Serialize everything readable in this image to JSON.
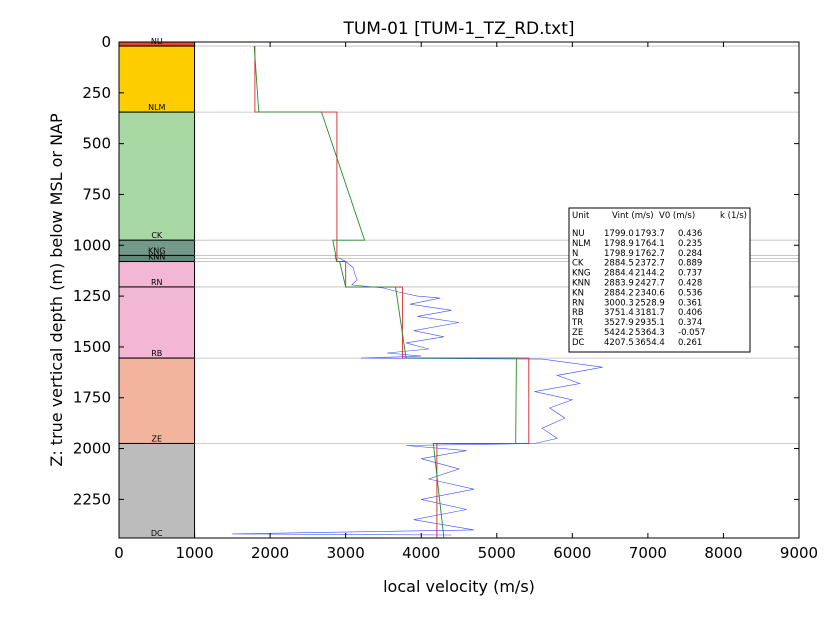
{
  "chart_data": {
    "type": "line",
    "title": "TUM-01 [TUM-1_TZ_RD.txt]",
    "xlabel": "local velocity (m/s)",
    "ylabel": "Z: true vertical depth (m) below MSL or NAP",
    "xlim": [
      0,
      9000
    ],
    "ylim": [
      2440,
      0
    ],
    "x_ticks": [
      "0",
      "1000",
      "2000",
      "3000",
      "4000",
      "5000",
      "6000",
      "7000",
      "8000",
      "9000"
    ],
    "y_ticks": [
      "0",
      "250",
      "500",
      "750",
      "1000",
      "1250",
      "1500",
      "1750",
      "2000",
      "2250"
    ],
    "grid": false,
    "units": [
      {
        "name": "NU",
        "top": 0,
        "bottom": 20,
        "color": "#e8432e",
        "vint": 1799.0,
        "v0": 1793.7,
        "k": 0.436
      },
      {
        "name": "NLM",
        "top": 20,
        "bottom": 345,
        "color": "#fdcd00",
        "vint": 1798.9,
        "v0": 1764.1,
        "k": 0.235
      },
      {
        "name": "CK",
        "top": 345,
        "bottom": 975,
        "color": "#a7d8a3",
        "vint": 2884.5,
        "v0": 2372.7,
        "k": 0.889
      },
      {
        "name": "KNG",
        "top": 975,
        "bottom": 1050,
        "color": "#73998a",
        "vint": 2884.4,
        "v0": 2144.2,
        "k": 0.737
      },
      {
        "name": "KNN",
        "top": 1050,
        "bottom": 1080,
        "color": "#5e8b77",
        "vint": 2883.9,
        "v0": 2427.7,
        "k": 0.428
      },
      {
        "name": "RN",
        "top": 1080,
        "bottom": 1205,
        "color": "#f3b7d6",
        "vint": 3000.3,
        "v0": 2528.9,
        "k": 0.361
      },
      {
        "name": "RB",
        "top": 1205,
        "bottom": 1555,
        "color": "#f3b7d6",
        "vint": 3751.4,
        "v0": 3181.7,
        "k": 0.406
      },
      {
        "name": "ZE",
        "top": 1555,
        "bottom": 1975,
        "color": "#f3b49e",
        "vint": 5424.2,
        "v0": 5364.3,
        "k": -0.057
      },
      {
        "name": "DC",
        "top": 1975,
        "bottom": 2440,
        "color": "#bcbcbc",
        "vint": 4207.5,
        "v0": 3654.4,
        "k": 0.261
      }
    ],
    "legend": {
      "placement": "right",
      "header": [
        "Unit",
        "Vint (m/s)",
        "V0 (m/s)",
        "k (1/s)"
      ],
      "rows": [
        [
          "NU",
          "1799.0",
          "1793.7",
          "0.436"
        ],
        [
          "NLM",
          "1798.9",
          "1764.1",
          "0.235"
        ],
        [
          "N",
          "1798.9",
          "1762.7",
          "0.284"
        ],
        [
          "CK",
          "2884.5",
          "2372.7",
          "0.889"
        ],
        [
          "KNG",
          "2884.4",
          "2144.2",
          "0.737"
        ],
        [
          "KNN",
          "2883.9",
          "2427.7",
          "0.428"
        ],
        [
          "KN",
          "2884.2",
          "2340.6",
          "0.536"
        ],
        [
          "RN",
          "3000.3",
          "2528.9",
          "0.361"
        ],
        [
          "RB",
          "3751.4",
          "3181.7",
          "0.406"
        ],
        [
          "TR",
          "3527.9",
          "2935.1",
          "0.374"
        ],
        [
          "ZE",
          "5424.2",
          "5364.3",
          "-0.057"
        ],
        [
          "DC",
          "4207.5",
          "3654.4",
          "0.261"
        ]
      ]
    },
    "boundaries": [
      20,
      345,
      975,
      1050,
      1065,
      1080,
      1205,
      1555,
      1975,
      2440
    ],
    "series": [
      {
        "color": "#d62728",
        "points": [
          [
            1799,
            20
          ],
          [
            1799,
            345
          ],
          [
            2884,
            345
          ],
          [
            2884,
            975
          ],
          [
            2884,
            975
          ],
          [
            2884,
            1080
          ],
          [
            3000,
            1080
          ],
          [
            3000,
            1205
          ],
          [
            3751,
            1205
          ],
          [
            3751,
            1555
          ],
          [
            5424,
            1555
          ],
          [
            5424,
            1975
          ],
          [
            4207,
            1975
          ],
          [
            4207,
            2440
          ]
        ]
      },
      {
        "color": "#2a8a2a",
        "points": [
          [
            1790,
            20
          ],
          [
            1850,
            345
          ],
          [
            2680,
            345
          ],
          [
            3250,
            975
          ],
          [
            2830,
            975
          ],
          [
            2870,
            1050
          ],
          [
            2860,
            1050
          ],
          [
            2880,
            1080
          ],
          [
            2920,
            1080
          ],
          [
            3000,
            1205
          ],
          [
            3660,
            1205
          ],
          [
            3800,
            1555
          ],
          [
            5260,
            1555
          ],
          [
            5250,
            1975
          ],
          [
            4160,
            1975
          ],
          [
            4300,
            2440
          ]
        ]
      },
      {
        "color": "#3b4cff",
        "points": [
          [
            2900,
            1060
          ],
          [
            3000,
            1080
          ],
          [
            3100,
            1110
          ],
          [
            3120,
            1140
          ],
          [
            3150,
            1170
          ],
          [
            3080,
            1195
          ],
          [
            3500,
            1210
          ],
          [
            3700,
            1230
          ],
          [
            3950,
            1250
          ],
          [
            4250,
            1260
          ],
          [
            3850,
            1290
          ],
          [
            4400,
            1320
          ],
          [
            3950,
            1350
          ],
          [
            4500,
            1380
          ],
          [
            3900,
            1420
          ],
          [
            4300,
            1450
          ],
          [
            3800,
            1480
          ],
          [
            4100,
            1510
          ],
          [
            3550,
            1530
          ],
          [
            4000,
            1545
          ],
          [
            3200,
            1555
          ],
          [
            5600,
            1560
          ],
          [
            6400,
            1600
          ],
          [
            5800,
            1640
          ],
          [
            6100,
            1680
          ],
          [
            5500,
            1720
          ],
          [
            6000,
            1760
          ],
          [
            5700,
            1800
          ],
          [
            5900,
            1850
          ],
          [
            5600,
            1900
          ],
          [
            5800,
            1950
          ],
          [
            5500,
            1975
          ],
          [
            3800,
            1985
          ],
          [
            4600,
            2010
          ],
          [
            4000,
            2050
          ],
          [
            4500,
            2100
          ],
          [
            4100,
            2150
          ],
          [
            4700,
            2200
          ],
          [
            4000,
            2250
          ],
          [
            4600,
            2300
          ],
          [
            3900,
            2350
          ],
          [
            4700,
            2400
          ],
          [
            1500,
            2420
          ],
          [
            4400,
            2425
          ]
        ]
      }
    ]
  }
}
